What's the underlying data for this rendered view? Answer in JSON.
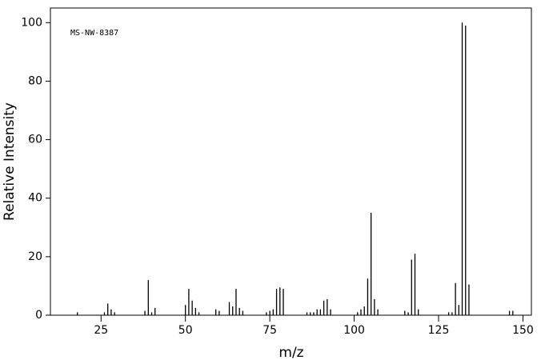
{
  "chart_data": {
    "type": "stem",
    "annotation": "MS-NW-8387",
    "xlabel": "m/z",
    "ylabel": "Relative Intensity",
    "color": "#000000",
    "x": [
      18,
      26,
      27,
      28,
      29,
      38,
      39,
      40,
      41,
      50,
      51,
      52,
      53,
      54,
      59,
      60,
      63,
      64,
      65,
      66,
      67,
      74,
      75,
      76,
      77,
      78,
      79,
      86,
      87,
      88,
      89,
      90,
      91,
      92,
      93,
      101,
      102,
      103,
      104,
      105,
      106,
      107,
      115,
      116,
      117,
      118,
      119,
      128,
      129,
      130,
      131,
      132,
      133,
      134,
      146,
      147
    ],
    "values": [
      1,
      1,
      4,
      2,
      1,
      1.5,
      12,
      1,
      2.5,
      3.5,
      9,
      5,
      2.5,
      1,
      2,
      1.5,
      4.5,
      3,
      9,
      2.5,
      1.5,
      1,
      1.5,
      2,
      9,
      9.5,
      9,
      1,
      1,
      1,
      2,
      2,
      5,
      5.5,
      2,
      1,
      2,
      3,
      12.5,
      35,
      5.5,
      2,
      1.5,
      1,
      19,
      21,
      2,
      1,
      1,
      11,
      3.5,
      100,
      99,
      10.5,
      1.5,
      1.5
    ],
    "xlim": [
      10,
      152.5
    ],
    "ylim": [
      0,
      105
    ],
    "xticks": [
      25,
      50,
      75,
      100,
      125,
      150
    ],
    "yticks": [
      0,
      20,
      40,
      60,
      80,
      100
    ]
  }
}
